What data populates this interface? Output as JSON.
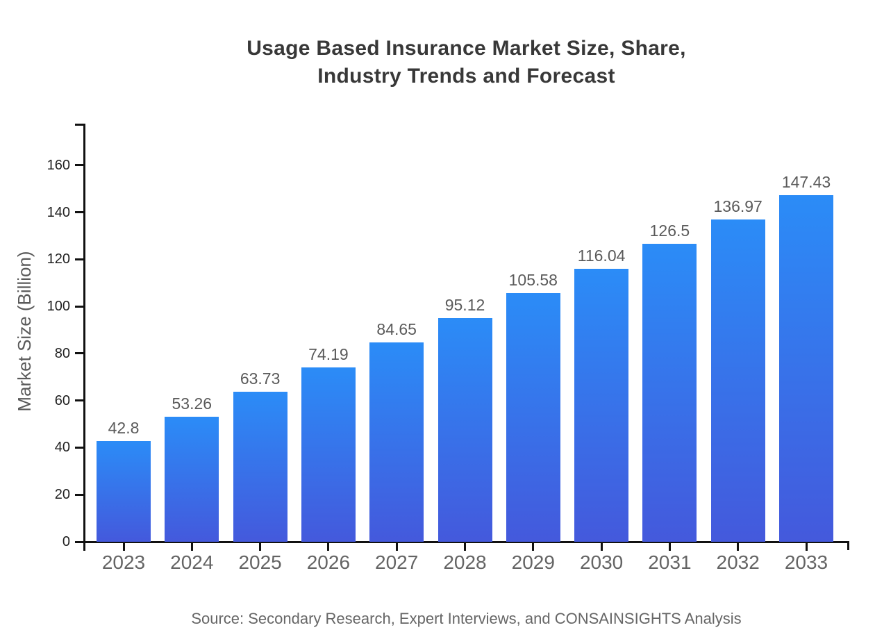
{
  "chart_data": {
    "type": "bar",
    "title": "Usage Based Insurance Market Size, Share,\nIndustry Trends and Forecast",
    "ylabel": "Market Size (Billion)",
    "xlabel": "",
    "source": "Source: Secondary Research, Expert Interviews, and CONSAINSIGHTS Analysis",
    "categories": [
      "2023",
      "2024",
      "2025",
      "2026",
      "2027",
      "2028",
      "2029",
      "2030",
      "2031",
      "2032",
      "2033"
    ],
    "values": [
      42.8,
      53.26,
      63.73,
      74.19,
      84.65,
      95.12,
      105.58,
      116.04,
      126.5,
      136.97,
      147.43
    ],
    "value_labels": [
      "42.8",
      "53.26",
      "63.73",
      "74.19",
      "84.65",
      "95.12",
      "105.58",
      "116.04",
      "126.5",
      "136.97",
      "147.43"
    ],
    "yticks": [
      0,
      20,
      40,
      60,
      80,
      100,
      120,
      140,
      160
    ],
    "ylim": [
      0,
      177.7
    ],
    "grid": false,
    "legend_position": "none",
    "colors": {
      "bar_gradient_top": "#2b8cf7",
      "bar_gradient_bottom": "#4459dc",
      "axis": "#111111",
      "title_text": "#383838",
      "value_label_text": "#5a5a5a",
      "y_tick_text": "#1f1f1f",
      "x_tick_text": "#646464",
      "source_text": "#666666",
      "background": "#ffffff"
    }
  }
}
